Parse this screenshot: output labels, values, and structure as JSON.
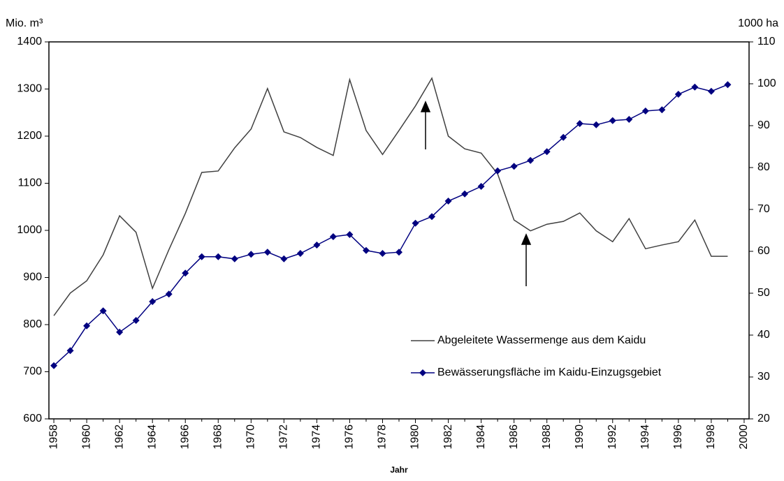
{
  "chart_data": {
    "type": "line",
    "y_label": "Mio. m³",
    "y2_label": "1000 ha",
    "x_label": "Jahr",
    "x": [
      1958,
      1959,
      1960,
      1961,
      1962,
      1963,
      1964,
      1965,
      1966,
      1967,
      1968,
      1969,
      1970,
      1971,
      1972,
      1973,
      1974,
      1975,
      1976,
      1977,
      1978,
      1979,
      1980,
      1981,
      1982,
      1983,
      1984,
      1985,
      1986,
      1987,
      1988,
      1989,
      1990,
      1991,
      1992,
      1993,
      1994,
      1995,
      1996,
      1997,
      1998,
      1999
    ],
    "xlim": [
      1957.7,
      2000.3
    ],
    "xticks": [
      1958,
      1960,
      1962,
      1964,
      1966,
      1968,
      1970,
      1972,
      1974,
      1976,
      1978,
      1980,
      1982,
      1984,
      1986,
      1988,
      1990,
      1992,
      1994,
      1996,
      1998,
      2000
    ],
    "ylim": [
      600,
      1400
    ],
    "yticks": [
      600,
      700,
      800,
      900,
      1000,
      1100,
      1200,
      1300,
      1400
    ],
    "y2lim": [
      20,
      110
    ],
    "y2ticks": [
      20,
      30,
      40,
      50,
      60,
      70,
      80,
      90,
      100,
      110
    ],
    "series": [
      {
        "name": "Abgeleitete Wassermenge aus dem Kaidu",
        "color": "#404040",
        "marker": false,
        "values": [
          819,
          867,
          893,
          948,
          1031,
          996,
          877,
          959,
          1036,
          1123,
          1126,
          1175,
          1215,
          1301,
          1209,
          1197,
          1176,
          1159,
          1320,
          1212,
          1161,
          1212,
          1264,
          1323,
          1200,
          1173,
          1164,
          1120,
          1022,
          999,
          1013,
          1019,
          1037,
          999,
          976,
          1025,
          961,
          969,
          976,
          1022,
          945,
          945
        ]
      },
      {
        "name": "Bewässerungsfläche im Kaidu-Einzugsgebiet",
        "color": "#000080",
        "marker": true,
        "axis": "y2",
        "values": [
          32.7,
          36.3,
          42.2,
          45.8,
          40.7,
          43.5,
          48.0,
          49.8,
          54.8,
          58.7,
          58.7,
          58.2,
          59.3,
          59.8,
          58.2,
          59.5,
          61.5,
          63.5,
          64.0,
          60.2,
          59.5,
          59.8,
          66.7,
          68.3,
          72.0,
          73.7,
          75.5,
          79.2,
          80.3,
          81.7,
          83.8,
          87.2,
          90.5,
          90.2,
          91.2,
          91.5,
          93.5,
          93.8,
          97.5,
          99.2,
          98.2,
          99.8
        ]
      }
    ]
  }
}
